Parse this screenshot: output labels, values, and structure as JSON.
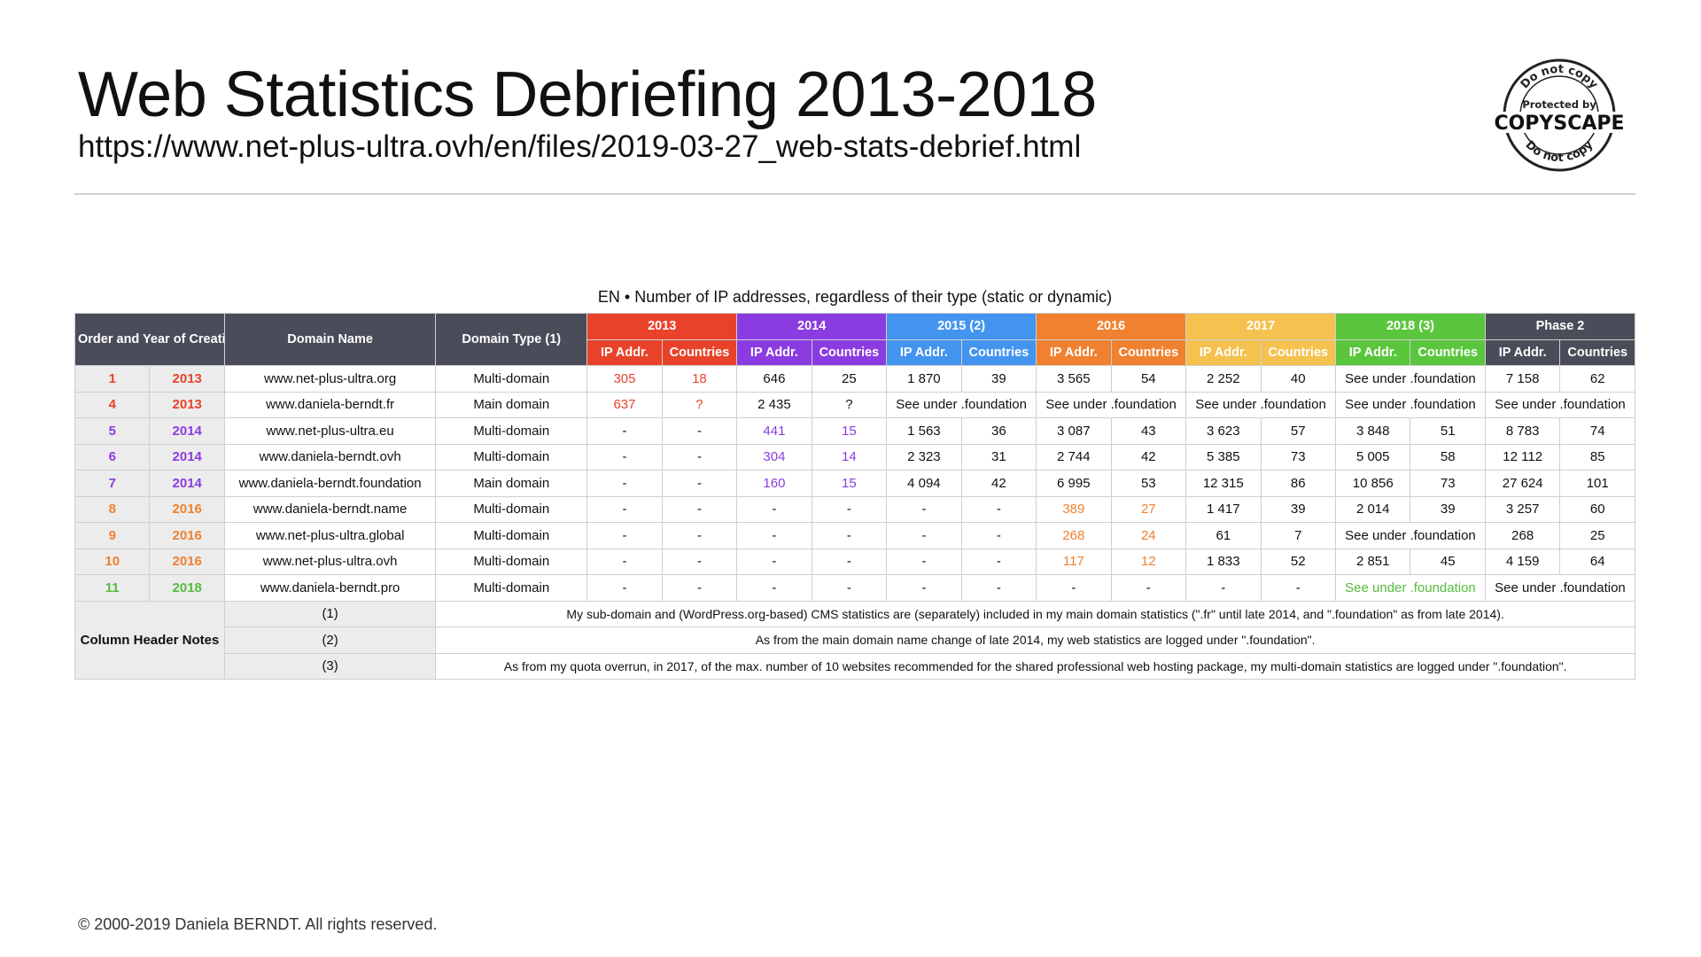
{
  "header": {
    "title": "Web Statistics Debriefing 2013-2018",
    "url": "https://www.net-plus-ultra.ovh/en/files/2019-03-27_web-stats-debrief.html"
  },
  "badge": {
    "top_text": "Do not copy",
    "middle_text": "Protected by",
    "brand": "COPYSCAPE",
    "bottom_text": "Do not copy"
  },
  "caption": "EN • Number of IP addresses, regardless of their type (static or dynamic)",
  "table": {
    "headers": {
      "order_year": "Order and Year of Creation",
      "domain_name": "Domain Name",
      "domain_type": "Domain Type (1)",
      "ip_label": "IP Addr.",
      "countries_label": "Countries"
    },
    "periods": [
      {
        "label": "2013",
        "color": "#e8432a"
      },
      {
        "label": "2014",
        "color": "#8a3ce0"
      },
      {
        "label": "2015 (2)",
        "color": "#4394ef"
      },
      {
        "label": "2016",
        "color": "#ef8131"
      },
      {
        "label": "2017",
        "color": "#f5c14f"
      },
      {
        "label": "2018 (3)",
        "color": "#5ac63d"
      },
      {
        "label": "Phase 2",
        "color": "#4a4d59"
      }
    ],
    "rows": [
      {
        "order": "1",
        "year": "2013",
        "color": "#e8432a",
        "domain": "www.net-plus-ultra.org",
        "type": "Multi-domain",
        "cells": [
          [
            "305",
            "18",
            "c-red"
          ],
          [
            "646",
            "25",
            ""
          ],
          [
            "1 870",
            "39",
            ""
          ],
          [
            "3 565",
            "54",
            ""
          ],
          [
            "2 252",
            "40",
            ""
          ],
          [
            "See under .foundation",
            "",
            "wide"
          ],
          [
            "7 158",
            "62",
            ""
          ]
        ]
      },
      {
        "order": "4",
        "year": "2013",
        "color": "#e8432a",
        "domain": "www.daniela-berndt.fr",
        "type": "Main domain",
        "cells": [
          [
            "637",
            "?",
            "c-red"
          ],
          [
            "2 435",
            "?",
            ""
          ],
          [
            "See under .foundation",
            "",
            "wide"
          ],
          [
            "See under .foundation",
            "",
            "wide"
          ],
          [
            "See under .foundation",
            "",
            "wide"
          ],
          [
            "See under .foundation",
            "",
            "wide"
          ],
          [
            "See under .foundation",
            "",
            "wide"
          ]
        ]
      },
      {
        "order": "5",
        "year": "2014",
        "color": "#8a3ce0",
        "domain": "www.net-plus-ultra.eu",
        "type": "Multi-domain",
        "cells": [
          [
            "-",
            "-",
            ""
          ],
          [
            "441",
            "15",
            "c-purple"
          ],
          [
            "1 563",
            "36",
            ""
          ],
          [
            "3 087",
            "43",
            ""
          ],
          [
            "3 623",
            "57",
            ""
          ],
          [
            "3 848",
            "51",
            ""
          ],
          [
            "8 783",
            "74",
            ""
          ]
        ]
      },
      {
        "order": "6",
        "year": "2014",
        "color": "#8a3ce0",
        "domain": "www.daniela-berndt.ovh",
        "type": "Multi-domain",
        "cells": [
          [
            "-",
            "-",
            ""
          ],
          [
            "304",
            "14",
            "c-purple"
          ],
          [
            "2 323",
            "31",
            ""
          ],
          [
            "2 744",
            "42",
            ""
          ],
          [
            "5 385",
            "73",
            ""
          ],
          [
            "5 005",
            "58",
            ""
          ],
          [
            "12 112",
            "85",
            ""
          ]
        ]
      },
      {
        "order": "7",
        "year": "2014",
        "color": "#8a3ce0",
        "domain": "www.daniela-berndt.foundation",
        "type": "Main domain",
        "cells": [
          [
            "-",
            "-",
            ""
          ],
          [
            "160",
            "15",
            "c-purple"
          ],
          [
            "4 094",
            "42",
            ""
          ],
          [
            "6 995",
            "53",
            ""
          ],
          [
            "12 315",
            "86",
            ""
          ],
          [
            "10 856",
            "73",
            ""
          ],
          [
            "27 624",
            "101",
            ""
          ]
        ]
      },
      {
        "order": "8",
        "year": "2016",
        "color": "#ef8131",
        "domain": "www.daniela-berndt.name",
        "type": "Multi-domain",
        "cells": [
          [
            "-",
            "-",
            ""
          ],
          [
            "-",
            "-",
            ""
          ],
          [
            "-",
            "-",
            ""
          ],
          [
            "389",
            "27",
            "c-orange"
          ],
          [
            "1 417",
            "39",
            ""
          ],
          [
            "2 014",
            "39",
            ""
          ],
          [
            "3 257",
            "60",
            ""
          ]
        ]
      },
      {
        "order": "9",
        "year": "2016",
        "color": "#ef8131",
        "domain": "www.net-plus-ultra.global",
        "type": "Multi-domain",
        "cells": [
          [
            "-",
            "-",
            ""
          ],
          [
            "-",
            "-",
            ""
          ],
          [
            "-",
            "-",
            ""
          ],
          [
            "268",
            "24",
            "c-orange"
          ],
          [
            "61",
            "7",
            ""
          ],
          [
            "See under .foundation",
            "",
            "wide"
          ],
          [
            "268",
            "25",
            ""
          ]
        ]
      },
      {
        "order": "10",
        "year": "2016",
        "color": "#ef8131",
        "domain": "www.net-plus-ultra.ovh",
        "type": "Multi-domain",
        "cells": [
          [
            "-",
            "-",
            ""
          ],
          [
            "-",
            "-",
            ""
          ],
          [
            "-",
            "-",
            ""
          ],
          [
            "117",
            "12",
            "c-orange"
          ],
          [
            "1 833",
            "52",
            ""
          ],
          [
            "2 851",
            "45",
            ""
          ],
          [
            "4 159",
            "64",
            ""
          ]
        ]
      },
      {
        "order": "11",
        "year": "2018",
        "color": "#54bc3c",
        "domain": "www.daniela-berndt.pro",
        "type": "Multi-domain",
        "cells": [
          [
            "-",
            "-",
            ""
          ],
          [
            "-",
            "-",
            ""
          ],
          [
            "-",
            "-",
            ""
          ],
          [
            "-",
            "-",
            ""
          ],
          [
            "-",
            "-",
            ""
          ],
          [
            "See under .foundation",
            "",
            "wide c-green"
          ],
          [
            "See under .foundation",
            "",
            "wide"
          ]
        ]
      }
    ],
    "notes": {
      "label": "Column Header Notes",
      "items": [
        {
          "num": "(1)",
          "text": "My sub-domain and (WordPress.org-based) CMS statistics are (separately) included in my main domain statistics (\".fr\" until late 2014, and \".foundation\" as from late 2014)."
        },
        {
          "num": "(2)",
          "text": "As from the main domain name change of late 2014, my web statistics are logged under \".foundation\"."
        },
        {
          "num": "(3)",
          "text": "As from my quota overrun, in 2017, of the max. number of 10 websites recommended for the shared professional web hosting package, my multi-domain statistics are logged under \".foundation\"."
        }
      ]
    }
  },
  "footer": "© 2000-2019 Daniela BERNDT. All rights reserved."
}
